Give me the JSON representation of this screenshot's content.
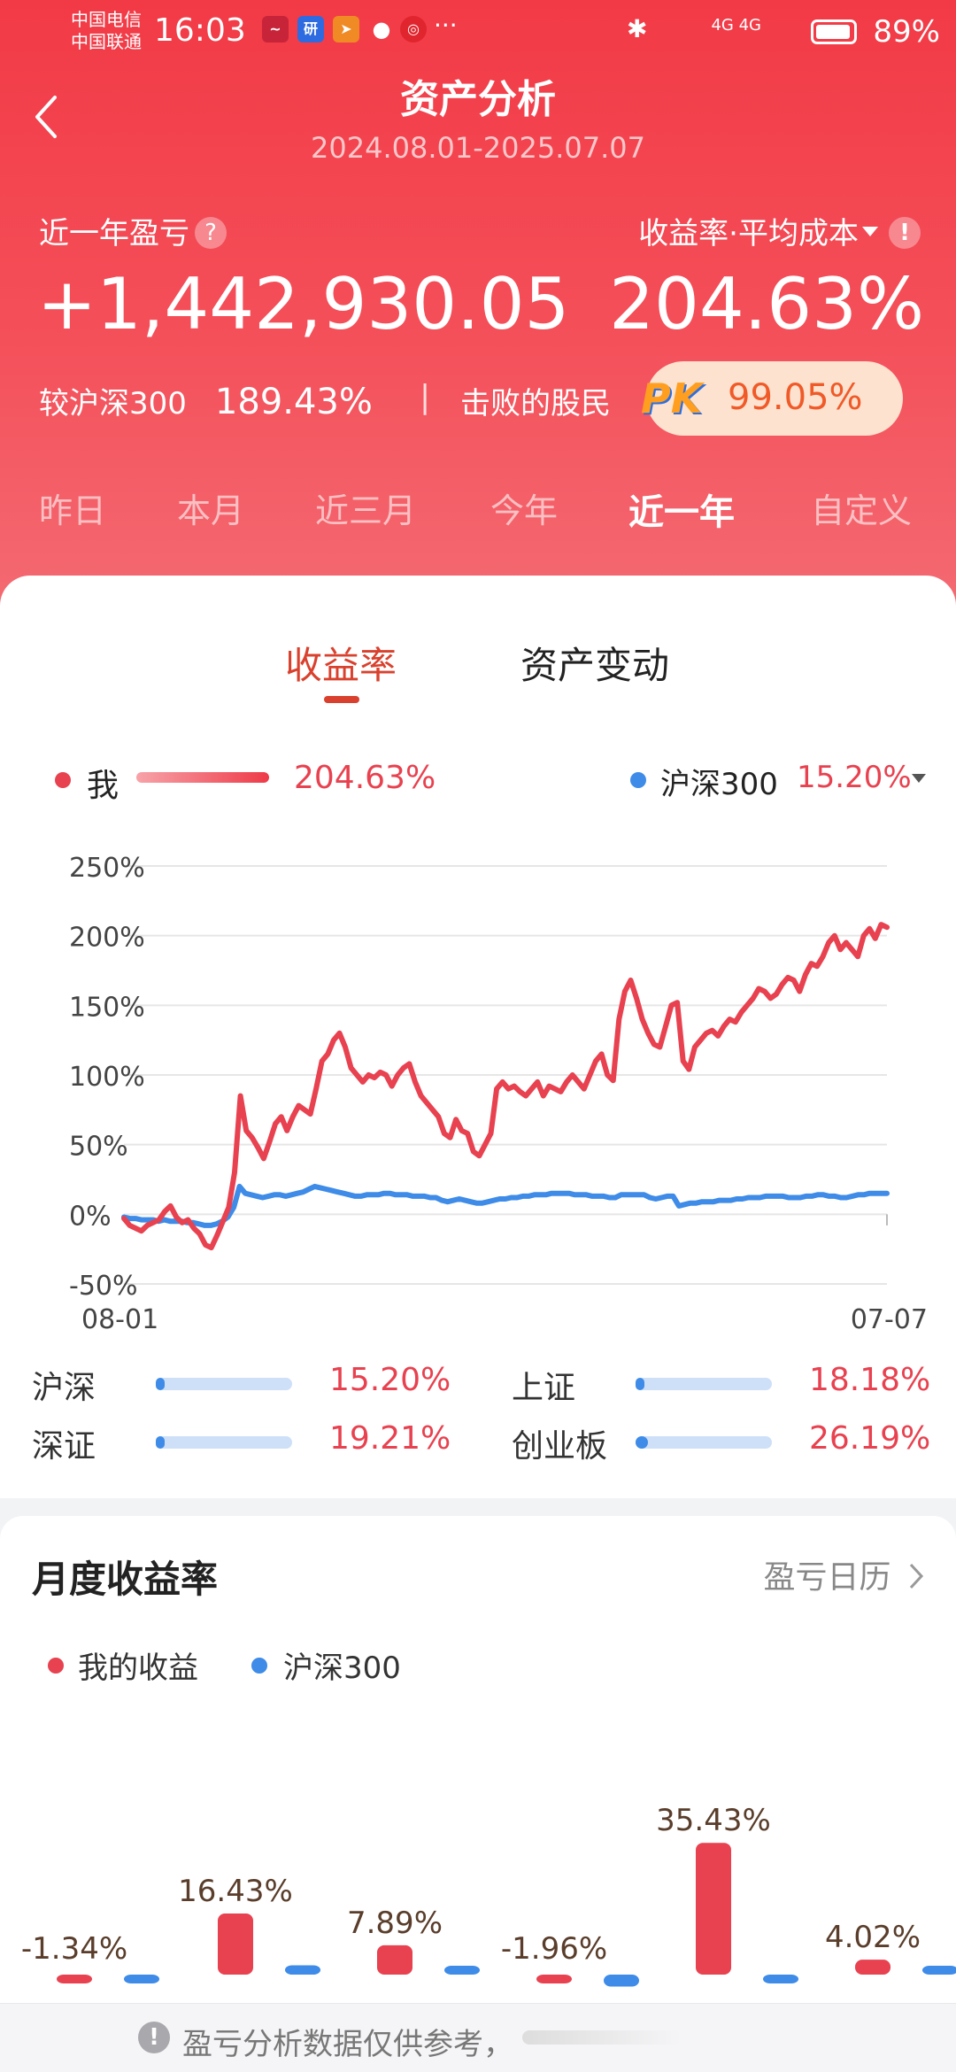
{
  "status_bar": {
    "carrier1": "中国电信",
    "carrier2": "中国联通",
    "time": "16:03",
    "app_icons": [
      "stock-app-icon",
      "yan-app-icon",
      "feishu-icon",
      "wechat-icon",
      "camera-app-icon"
    ],
    "more": "···",
    "network": "4G 4G",
    "battery": "89%"
  },
  "header": {
    "title": "资产分析",
    "date_range": "2024.08.01-2025.07.07",
    "pnl_label": "近一年盈亏",
    "help": "?",
    "return_label": "收益率·平均成本",
    "warn": "!",
    "pnl_value": "+1,442,930.05",
    "return_value": "204.63%",
    "vs_label": "较沪深300",
    "vs_value": "189.43%",
    "divider": "|",
    "beat_label": "击败的股民",
    "pk_label": "PK",
    "beat_value": "99.05%"
  },
  "period_tabs": [
    {
      "label": "昨日"
    },
    {
      "label": "本月"
    },
    {
      "label": "近三月"
    },
    {
      "label": "今年"
    },
    {
      "label": "近一年",
      "active": true
    },
    {
      "label": "自定义"
    }
  ],
  "content_tabs": [
    {
      "label": "收益率",
      "active": true
    },
    {
      "label": "资产变动"
    }
  ],
  "legend": {
    "me_label": "我",
    "me_value": "204.63%",
    "index_label": "沪深300",
    "index_value": "15.20%"
  },
  "colors": {
    "me": "#e8414f",
    "index": "#3e8be8",
    "header_red": "#f23a46",
    "accent_text": "#d9412e"
  },
  "chart_data": {
    "type": "line",
    "y_ticks": [
      "250%",
      "200%",
      "150%",
      "100%",
      "50%",
      "0%",
      "-50%"
    ],
    "ylim": [
      -50,
      250
    ],
    "x_start_label": "08-01",
    "x_end_label": "07-07",
    "grid": true,
    "series": [
      {
        "name": "我",
        "color": "#e8414f",
        "values": [
          -3,
          -8,
          -10,
          -12,
          -8,
          -6,
          -4,
          2,
          6,
          -2,
          -6,
          -4,
          -10,
          -14,
          -22,
          -24,
          -15,
          -5,
          5,
          30,
          85,
          60,
          55,
          48,
          40,
          52,
          65,
          70,
          60,
          70,
          78,
          75,
          72,
          90,
          110,
          115,
          125,
          130,
          120,
          105,
          100,
          95,
          100,
          98,
          102,
          100,
          92,
          100,
          105,
          108,
          95,
          85,
          80,
          75,
          70,
          58,
          55,
          68,
          60,
          58,
          45,
          42,
          50,
          58,
          90,
          95,
          90,
          92,
          88,
          85,
          90,
          95,
          85,
          92,
          90,
          88,
          95,
          100,
          95,
          90,
          100,
          110,
          115,
          100,
          96,
          140,
          160,
          168,
          155,
          140,
          130,
          122,
          120,
          135,
          150,
          152,
          110,
          104,
          120,
          125,
          130,
          132,
          128,
          135,
          140,
          138,
          145,
          150,
          155,
          162,
          160,
          155,
          158,
          165,
          170,
          168,
          160,
          172,
          180,
          178,
          185,
          195,
          200,
          190,
          195,
          190,
          185,
          200,
          205,
          198,
          208,
          206
        ]
      },
      {
        "name": "沪深300",
        "color": "#3e8be8",
        "values": [
          -2,
          -3,
          -3,
          -4,
          -4,
          -4,
          -5,
          -4,
          -5,
          -5,
          -5,
          -6,
          -6,
          -7,
          -8,
          -8,
          -7,
          -5,
          -2,
          5,
          20,
          15,
          14,
          13,
          12,
          13,
          14,
          14,
          13,
          14,
          15,
          16,
          18,
          20,
          19,
          18,
          17,
          16,
          15,
          14,
          13,
          13,
          14,
          14,
          14,
          15,
          15,
          14,
          14,
          14,
          13,
          13,
          13,
          12,
          12,
          10,
          9,
          10,
          11,
          10,
          9,
          8,
          8,
          9,
          10,
          11,
          11,
          12,
          12,
          13,
          13,
          14,
          14,
          14,
          15,
          15,
          15,
          15,
          14,
          14,
          14,
          13,
          13,
          13,
          12,
          12,
          14,
          14,
          14,
          14,
          14,
          12,
          11,
          12,
          13,
          13,
          6,
          7,
          8,
          8,
          9,
          9,
          9,
          10,
          10,
          10,
          11,
          11,
          12,
          12,
          12,
          13,
          13,
          13,
          13,
          12,
          12,
          12,
          13,
          13,
          14,
          14,
          13,
          13,
          12,
          12,
          13,
          14,
          14,
          15,
          15,
          15,
          15
        ]
      }
    ]
  },
  "index_rows": [
    {
      "name": "沪深",
      "value": "15.20%",
      "fraction": 0.152
    },
    {
      "name": "上证",
      "value": "18.18%",
      "fraction": 0.1818
    },
    {
      "name": "深证",
      "value": "19.21%",
      "fraction": 0.1921
    },
    {
      "name": "创业板",
      "value": "26.19%",
      "fraction": 0.2619
    }
  ],
  "monthly": {
    "title": "月度收益率",
    "calendar_link": "盈亏日历",
    "legend_me": "我的收益",
    "legend_index": "沪深300",
    "chart_data": {
      "type": "bar",
      "series": [
        {
          "name": "我的收益",
          "color": "#e8414f",
          "values": [
            -1.34,
            16.43,
            7.89,
            -1.96,
            35.43,
            4.02
          ],
          "labels": [
            "-1.34%",
            "16.43%",
            "7.89%",
            "-1.96%",
            "35.43%",
            "4.02%"
          ]
        },
        {
          "name": "沪深300",
          "color": "#3e8be8",
          "values": [
            -0.74,
            2.5,
            1.85,
            -3.2,
            -0.07,
            0.5
          ],
          "labels": [
            "-0.74%",
            "2.50%",
            "1.85%",
            "",
            "-0.07%",
            ""
          ]
        }
      ]
    }
  },
  "footer": {
    "icon": "!",
    "text": "盈亏分析数据仅供参考，"
  }
}
